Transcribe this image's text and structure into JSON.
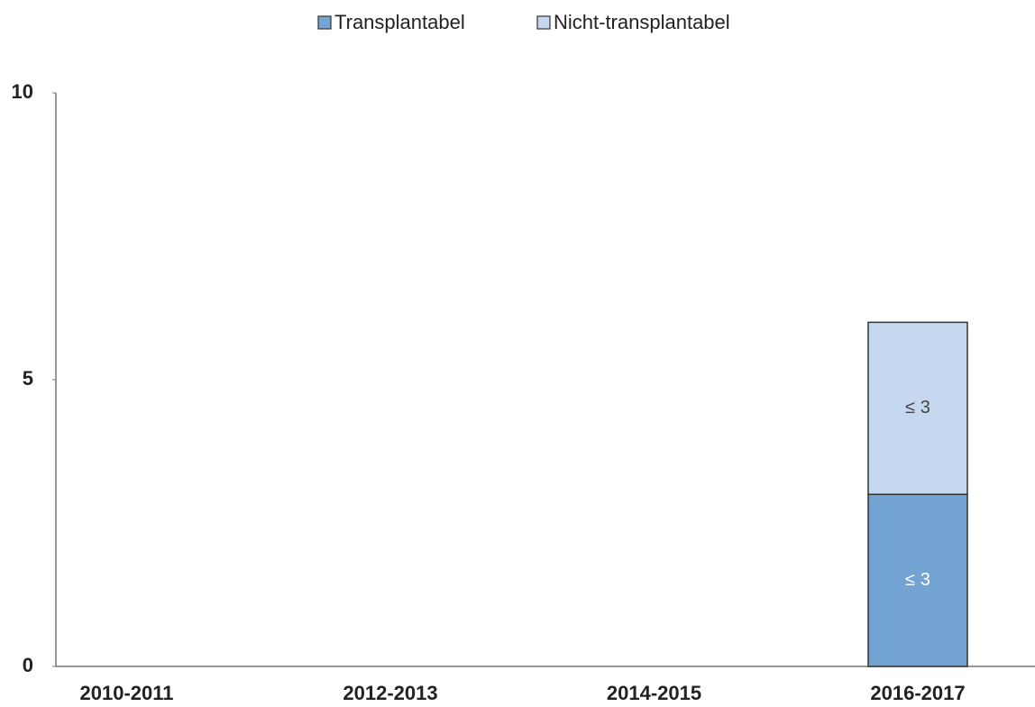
{
  "chart_data": {
    "type": "stacked_bar",
    "categories": [
      "2010-2011",
      "2012-2013",
      "2014-2015",
      "2016-2017"
    ],
    "series": [
      {
        "name": "Transplantabel",
        "color": "#72a3d3",
        "values": [
          null,
          null,
          null,
          3
        ],
        "value_labels": [
          null,
          null,
          null,
          "≤ 3"
        ]
      },
      {
        "name": "Nicht-transplantabel",
        "color": "#c6d8ef",
        "values": [
          null,
          null,
          null,
          3
        ],
        "value_labels": [
          null,
          null,
          null,
          "≤ 3"
        ]
      }
    ],
    "ylim": [
      0,
      10
    ],
    "yticks": [
      0,
      5,
      10
    ],
    "grid": false,
    "legend": "top"
  }
}
